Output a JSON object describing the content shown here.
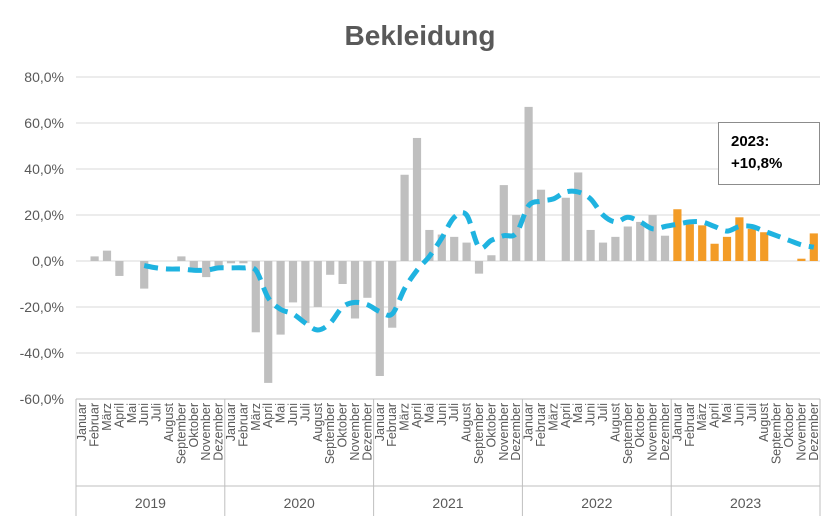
{
  "chart_data": {
    "type": "bar",
    "title": "Bekleidung",
    "xlabel": "",
    "ylabel": "",
    "ylim": [
      -60,
      80
    ],
    "y_ticks": [
      "80,0%",
      "60,0%",
      "40,0%",
      "20,0%",
      "0,0%",
      "-20,0%",
      "-40,0%",
      "-60,0%"
    ],
    "grid": true,
    "years": [
      "2019",
      "2020",
      "2021",
      "2022",
      "2023"
    ],
    "months": [
      "Januar",
      "Februar",
      "März",
      "April",
      "Mai",
      "Juni",
      "Juli",
      "August",
      "September",
      "Oktober",
      "November",
      "Dezember"
    ],
    "series": [
      {
        "type": "bar",
        "values": [
          0,
          2,
          4.5,
          -6.5,
          0,
          -12,
          0,
          0,
          2,
          -3.5,
          -7,
          -3,
          -1,
          -1,
          -31,
          -53,
          -32,
          -18,
          -27,
          -20,
          -6,
          -10,
          -25,
          -16,
          -50,
          -29,
          37.5,
          53.5,
          13.5,
          11.5,
          10.5,
          8,
          -5.5,
          2.5,
          33,
          20,
          67,
          31,
          0,
          27.5,
          38.5,
          13.5,
          8,
          10.5,
          15,
          17,
          20,
          11,
          22.5,
          16,
          15.5,
          7.5,
          10.5,
          19,
          14,
          12.5,
          0,
          0,
          1,
          12
        ],
        "colors": {
          "2019-2022": "#bfbfbf",
          "2023": "#f39c27"
        }
      },
      {
        "type": "line",
        "style": "dashed",
        "color": "#1fb3e0",
        "values": [
          null,
          null,
          null,
          null,
          null,
          -2,
          -3,
          -3.5,
          -3.5,
          -4,
          -4,
          -3,
          -3,
          -3,
          -4,
          -16,
          -21,
          -23,
          -27,
          -30,
          -27,
          -20,
          -18,
          -19,
          -22,
          -23,
          -12,
          -4,
          2,
          10,
          19,
          20,
          6,
          9,
          11,
          12,
          24,
          26,
          27,
          30,
          30,
          27,
          20,
          17,
          19,
          17,
          14,
          15,
          16,
          17,
          17,
          15,
          13,
          15,
          15,
          13,
          11,
          9,
          7,
          6
        ]
      }
    ],
    "annotation": {
      "line1": "2023:",
      "line2": "+10,8%"
    }
  }
}
